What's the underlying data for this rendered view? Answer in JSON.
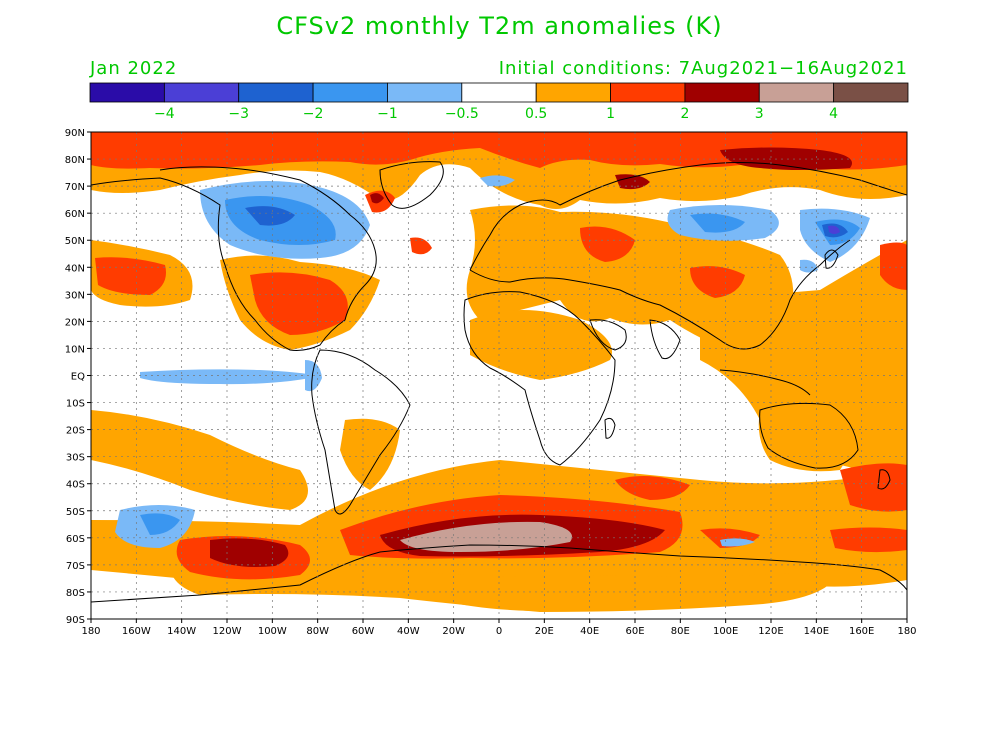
{
  "title": "CFSv2 monthly T2m anomalies (K)",
  "forecast_month": "Jan 2022",
  "initial_conditions": "Initial conditions: 7Aug2021−16Aug2021",
  "colorbar": {
    "colors": [
      "#2a0ca8",
      "#4b3fd6",
      "#1e62d0",
      "#3a96f0",
      "#7ab9f7",
      "#ffffff",
      "#ffa500",
      "#ff3c00",
      "#a00000",
      "#c8a096",
      "#7a5046"
    ],
    "labels": [
      "−4",
      "−3",
      "−2",
      "−1",
      "−0.5",
      "0.5",
      "1",
      "2",
      "3",
      "4"
    ]
  },
  "lat_labels": [
    "90N",
    "80N",
    "70N",
    "60N",
    "50N",
    "40N",
    "30N",
    "20N",
    "10N",
    "EQ",
    "10S",
    "20S",
    "30S",
    "40S",
    "50S",
    "60S",
    "70S",
    "80S",
    "90S"
  ],
  "lon_labels": [
    "180",
    "160W",
    "140W",
    "120W",
    "100W",
    "80W",
    "60W",
    "40W",
    "20W",
    "0",
    "20E",
    "40E",
    "60E",
    "80E",
    "100E",
    "120E",
    "140E",
    "160E",
    "180"
  ],
  "palette": {
    "orange": "#ffa500",
    "red": "#ff3c00",
    "darkred": "#a00000",
    "rose": "#c8a096",
    "lightblue": "#7ab9f7",
    "blue": "#3a96f0",
    "midblue": "#1e62d0",
    "deepblue": "#4b3fd6"
  }
}
